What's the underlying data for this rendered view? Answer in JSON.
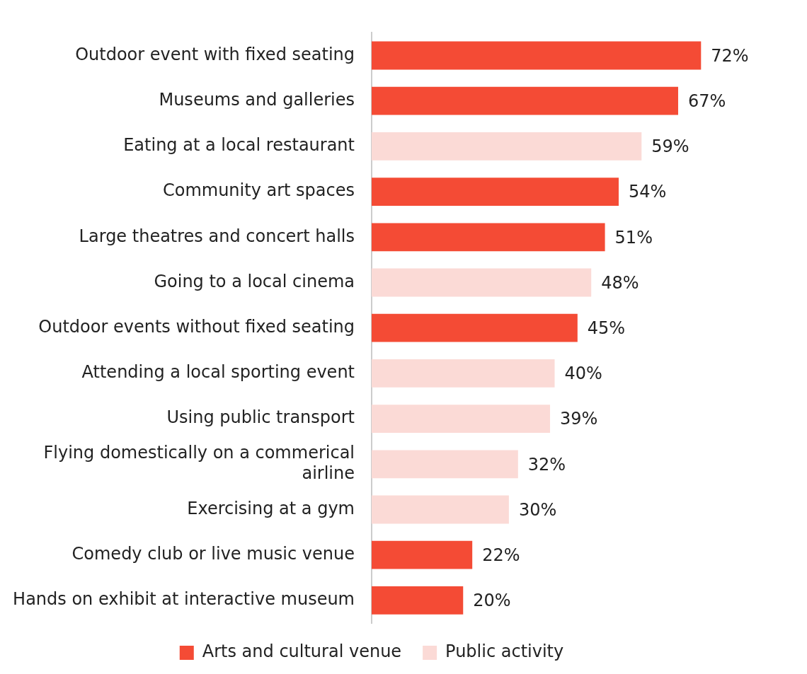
{
  "chart_data": {
    "type": "bar",
    "orientation": "horizontal",
    "legend": "bottom",
    "grid": false,
    "categories": [
      "Outdoor event with fixed seating",
      "Museums and galleries",
      "Eating at a local restaurant",
      "Community art spaces",
      "Large theatres and concert halls",
      "Going to a local cinema",
      "Outdoor events without fixed seating",
      "Attending a local sporting event",
      "Using public transport",
      "Flying domestically on a commerical airline",
      "Exercising at a gym",
      "Comedy club or live music venue",
      "Hands on exhibit at interactive museum"
    ],
    "series": [
      {
        "name": "Arts and cultural venue",
        "color": "#f44b35",
        "values": [
          72,
          67,
          null,
          54,
          51,
          null,
          45,
          null,
          null,
          null,
          null,
          22,
          20
        ],
        "value_labels": [
          "72%",
          "67%",
          null,
          "54%",
          "51%",
          null,
          "45%",
          null,
          null,
          null,
          null,
          "22%",
          "20%"
        ]
      },
      {
        "name": "Public activity",
        "color": "#fbdad6",
        "values": [
          null,
          null,
          59,
          null,
          null,
          48,
          null,
          40,
          39,
          32,
          30,
          null,
          null
        ],
        "value_labels": [
          null,
          null,
          "59%",
          null,
          null,
          "48%",
          null,
          "40%",
          "39%",
          "32%",
          "30%",
          null,
          null
        ]
      }
    ]
  }
}
